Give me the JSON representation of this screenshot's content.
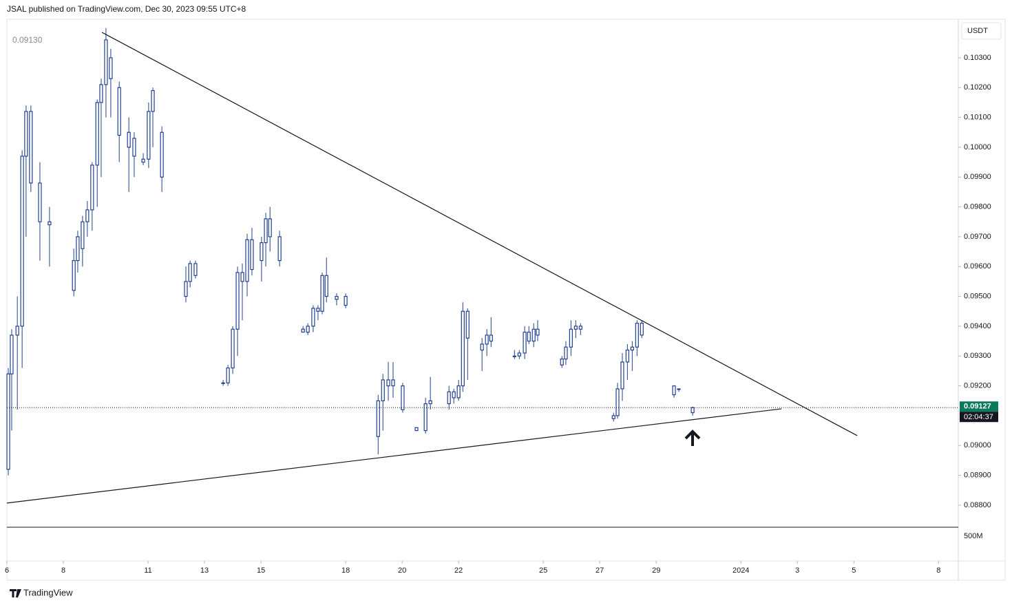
{
  "header": "JSAL published on TradingView.com, Dec 30, 2023 09:55 UTC+8",
  "brand": "TradingView",
  "chart_data": {
    "type": "candlestick",
    "ohlc_label": "0.09130",
    "currency": "USDT",
    "volume_label": "500M",
    "countdown": "02:04:37",
    "color": "#1f3f8f",
    "last_price": 0.09127,
    "xlim": [
      6,
      39.7
    ],
    "ylim": [
      0.08726,
      0.10429
    ],
    "xticks": [
      6,
      8,
      11,
      13,
      15,
      18,
      20,
      22,
      25,
      27,
      29,
      {
        "value": 32,
        "label": "2024"
      },
      {
        "value": 34,
        "label": "3"
      },
      {
        "value": 36,
        "label": "5"
      },
      {
        "value": 39,
        "label": "8"
      }
    ],
    "yticks": [
      {
        "value": 0.103,
        "label": "0.10300"
      },
      {
        "value": 0.102,
        "label": "0.10200"
      },
      {
        "value": 0.101,
        "label": "0.10100"
      },
      {
        "value": 0.1,
        "label": "0.10000"
      },
      {
        "value": 0.099,
        "label": "0.09900"
      },
      {
        "value": 0.098,
        "label": "0.09800"
      },
      {
        "value": 0.097,
        "label": "0.09700"
      },
      {
        "value": 0.096,
        "label": "0.09600"
      },
      {
        "value": 0.095,
        "label": "0.09500"
      },
      {
        "value": 0.094,
        "label": "0.09400"
      },
      {
        "value": 0.093,
        "label": "0.09300"
      },
      {
        "value": 0.092,
        "label": "0.09200"
      },
      {
        "value": 0.09,
        "label": "0.09000"
      },
      {
        "value": 0.089,
        "label": "0.08900"
      },
      {
        "value": 0.088,
        "label": "0.08800"
      }
    ],
    "x": [
      6.05,
      6.17,
      6.37,
      6.54,
      6.68,
      6.85,
      7.17,
      7.51,
      8.37,
      8.51,
      8.68,
      8.85,
      9.02,
      9.2,
      9.34,
      9.51,
      9.68,
      9.98,
      10.32,
      10.51,
      10.83,
      11.02,
      11.17,
      11.49,
      12.34,
      12.49,
      12.68,
      13.66,
      13.83,
      14.0,
      14.17,
      14.34,
      14.51,
      14.68,
      15.02,
      15.17,
      15.32,
      15.66,
      16.49,
      16.66,
      16.85,
      17.02,
      17.17,
      17.32,
      17.68,
      18.0,
      19.15,
      19.32,
      19.51,
      19.68,
      20.02,
      20.51,
      20.83,
      21.0,
      21.66,
      21.83,
      22.0,
      22.15,
      22.32,
      22.83,
      23.0,
      23.15,
      23.98,
      24.15,
      24.34,
      24.49,
      24.66,
      24.8,
      25.66,
      25.8,
      25.98,
      26.15,
      26.32,
      27.49,
      27.63,
      27.8,
      27.98,
      28.15,
      28.32,
      28.49,
      29.63,
      29.8,
      30.29
    ],
    "open": [
      0.0892,
      0.0924,
      0.0937,
      0.094,
      0.0997,
      0.1012,
      0.0988,
      0.0975,
      0.0952,
      0.0962,
      0.0966,
      0.0975,
      0.0979,
      0.0994,
      0.1015,
      0.1021,
      0.103,
      0.102,
      0.1005,
      0.1003,
      0.0995,
      0.0996,
      0.1012,
      0.1005,
      0.095,
      0.0955,
      0.0961,
      0.0921,
      0.0921,
      0.0926,
      0.0939,
      0.0958,
      0.0955,
      0.0969,
      0.0962,
      0.0968,
      0.0976,
      0.097,
      0.0939,
      0.0938,
      0.094,
      0.0946,
      0.0945,
      0.0957,
      0.095,
      0.095,
      0.0903,
      0.0915,
      0.0922,
      0.092,
      0.092,
      0.0906,
      0.0905,
      0.0914,
      0.0914,
      0.0918,
      0.0916,
      0.092,
      0.0945,
      0.0932,
      0.0934,
      0.0937,
      0.093,
      0.093,
      0.0931,
      0.0938,
      0.0935,
      0.0939,
      0.0927,
      0.0929,
      0.0933,
      0.0939,
      0.094,
      0.0909,
      0.091,
      0.0919,
      0.0928,
      0.0932,
      0.0933,
      0.0941,
      0.0917,
      0.0919,
      0.0911
    ],
    "high": [
      0.0926,
      0.0939,
      0.095,
      0.0999,
      0.1014,
      0.1014,
      0.0995,
      0.098,
      0.0966,
      0.0972,
      0.0977,
      0.0982,
      0.0995,
      0.1016,
      0.1023,
      0.104,
      0.1033,
      0.1022,
      0.101,
      0.1005,
      0.0998,
      0.1015,
      0.102,
      0.1007,
      0.096,
      0.0962,
      0.0962,
      0.0922,
      0.0927,
      0.094,
      0.096,
      0.0961,
      0.0971,
      0.0973,
      0.097,
      0.0978,
      0.098,
      0.0972,
      0.094,
      0.0941,
      0.0947,
      0.0947,
      0.0958,
      0.0963,
      0.0951,
      0.0951,
      0.0917,
      0.0924,
      0.0928,
      0.0928,
      0.0921,
      0.0906,
      0.0916,
      0.0923,
      0.092,
      0.0919,
      0.0922,
      0.0948,
      0.0946,
      0.0936,
      0.0939,
      0.0943,
      0.0932,
      0.0932,
      0.094,
      0.094,
      0.0941,
      0.0942,
      0.093,
      0.0935,
      0.0942,
      0.0942,
      0.0941,
      0.0911,
      0.0921,
      0.0931,
      0.0934,
      0.0935,
      0.0942,
      0.0942,
      0.092,
      0.0919,
      0.0913
    ],
    "low": [
      0.089,
      0.0905,
      0.0912,
      0.0926,
      0.097,
      0.0985,
      0.0962,
      0.096,
      0.095,
      0.0958,
      0.096,
      0.097,
      0.0972,
      0.098,
      0.099,
      0.101,
      0.101,
      0.0995,
      0.0985,
      0.099,
      0.0994,
      0.0993,
      0.1,
      0.0985,
      0.0948,
      0.0953,
      0.0956,
      0.092,
      0.092,
      0.0924,
      0.093,
      0.0942,
      0.095,
      0.0957,
      0.0955,
      0.096,
      0.0965,
      0.096,
      0.0938,
      0.0937,
      0.0938,
      0.0942,
      0.0944,
      0.0948,
      0.0947,
      0.0946,
      0.0897,
      0.0905,
      0.0915,
      0.0916,
      0.0911,
      0.0905,
      0.0904,
      0.0912,
      0.0912,
      0.0914,
      0.0915,
      0.0918,
      0.0922,
      0.0925,
      0.093,
      0.0933,
      0.0929,
      0.0929,
      0.0929,
      0.0934,
      0.0933,
      0.0935,
      0.0926,
      0.0927,
      0.093,
      0.0936,
      0.0937,
      0.0908,
      0.0909,
      0.0915,
      0.0922,
      0.0925,
      0.093,
      0.0936,
      0.0916,
      0.0918,
      0.091
    ],
    "close": [
      0.0924,
      0.0937,
      0.094,
      0.0997,
      0.1012,
      0.0988,
      0.0975,
      0.0974,
      0.0962,
      0.097,
      0.0975,
      0.0979,
      0.0994,
      0.1015,
      0.1021,
      0.1036,
      0.1023,
      0.1004,
      0.1,
      0.0997,
      0.0996,
      0.1012,
      0.1019,
      0.099,
      0.0955,
      0.0961,
      0.0957,
      0.0921,
      0.0926,
      0.0939,
      0.0958,
      0.0955,
      0.0969,
      0.0959,
      0.0968,
      0.0976,
      0.097,
      0.0962,
      0.0938,
      0.094,
      0.0946,
      0.0945,
      0.0957,
      0.095,
      0.0949,
      0.0947,
      0.0915,
      0.0922,
      0.092,
      0.0922,
      0.0912,
      0.0905,
      0.0914,
      0.0915,
      0.0918,
      0.0916,
      0.092,
      0.0945,
      0.0936,
      0.0934,
      0.0937,
      0.0935,
      0.093,
      0.0931,
      0.0938,
      0.0935,
      0.0939,
      0.0937,
      0.0929,
      0.0933,
      0.0939,
      0.094,
      0.0939,
      0.091,
      0.0919,
      0.0928,
      0.0932,
      0.0933,
      0.0941,
      0.0937,
      0.092,
      0.0919,
      0.09127
    ],
    "trendlines": [
      {
        "x": [
          9.37,
          36.12
        ],
        "y": [
          0.10385,
          0.09033
        ]
      },
      {
        "x": [
          6,
          33.44
        ],
        "y": [
          0.08807,
          0.09123
        ]
      }
    ]
  }
}
